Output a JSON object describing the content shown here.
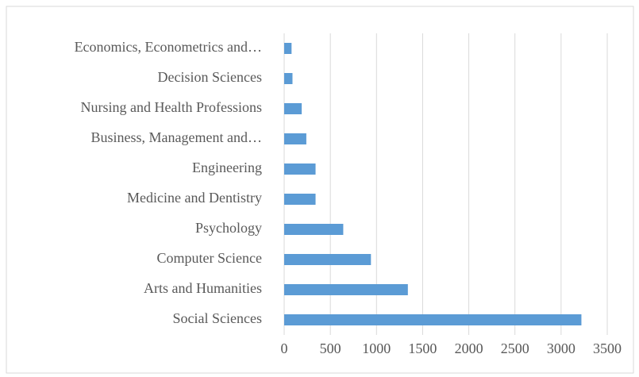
{
  "chart_data": {
    "type": "barh",
    "categories": [
      "Social Sciences",
      "Arts and Humanities",
      "Computer Science",
      "Psychology",
      "Medicine and Dentistry",
      "Engineering",
      "Business, Management and…",
      "Nursing and Health Professions",
      "Decision Sciences",
      "Economics, Econometrics and…"
    ],
    "values": [
      3220,
      1340,
      940,
      640,
      340,
      340,
      240,
      190,
      90,
      80
    ],
    "color": "#5b9bd5",
    "xlim": [
      0,
      3500
    ],
    "xticks": [
      0,
      500,
      1000,
      1500,
      2000,
      2500,
      3000,
      3500
    ],
    "grid": true
  }
}
